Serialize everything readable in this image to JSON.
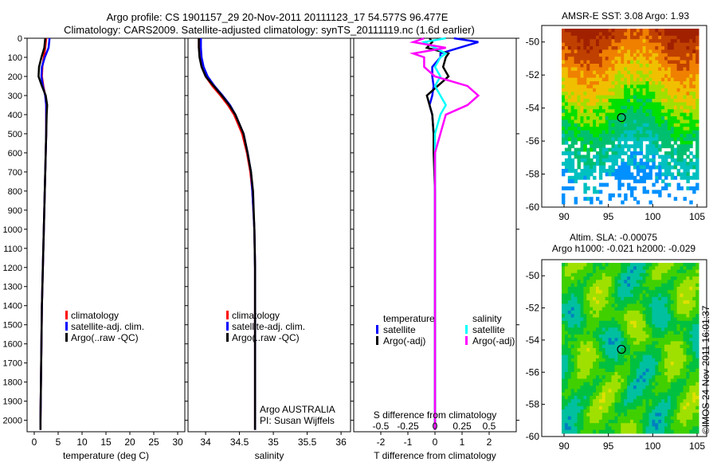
{
  "title_line1": "Argo profile: CS 1901157_29 20-Nov-2011 20111123_17 54.577S 96.477E",
  "title_line2": "Climatology: CARS2009. Satellite-adjusted climatology: synTS_20111119.nc (1.6d earlier)",
  "colors": {
    "climatology": "#ff0000",
    "satellite": "#0000ff",
    "argo": "#000000",
    "sal_satellite": "#00ffff",
    "sal_argo": "#ff00ff"
  },
  "chart_data": [
    {
      "type": "line",
      "xlabel": "temperature (deg C)",
      "xticks": [
        0,
        5,
        10,
        15,
        20,
        25,
        30
      ],
      "xlim": [
        -1.5,
        31.5
      ],
      "ylim": [
        0,
        2060
      ],
      "yticks": [
        0,
        100,
        200,
        300,
        400,
        500,
        600,
        700,
        800,
        900,
        1000,
        1100,
        1200,
        1300,
        1400,
        1500,
        1600,
        1700,
        1800,
        1900,
        2000
      ],
      "legend": [
        "climatology",
        "satellite-adj. clim.",
        "Argo(..raw -QC)"
      ],
      "depth": [
        0,
        50,
        100,
        150,
        200,
        250,
        300,
        350,
        400,
        500,
        600,
        800,
        1000,
        1200,
        1400,
        1600,
        1800,
        2000,
        2050
      ],
      "series": [
        {
          "name": "climatology",
          "values": [
            2.5,
            2.3,
            2.0,
            1.7,
            1.6,
            1.9,
            2.3,
            2.5,
            2.5,
            2.5,
            2.4,
            2.2,
            2.0,
            1.8,
            1.6,
            1.5,
            1.4,
            1.3,
            1.3
          ]
        },
        {
          "name": "satellite-adj. clim.",
          "values": [
            3.2,
            3.0,
            2.2,
            1.6,
            1.5,
            1.8,
            2.3,
            2.5,
            2.5,
            2.5,
            2.4,
            2.2,
            2.0,
            1.8,
            1.6,
            1.5,
            1.4,
            1.3,
            1.3
          ]
        },
        {
          "name": "Argo",
          "values": [
            2.3,
            2.1,
            1.5,
            1.0,
            0.9,
            1.6,
            2.4,
            2.7,
            2.6,
            2.5,
            2.4,
            2.2,
            2.0,
            1.8,
            1.6,
            1.5,
            1.4,
            1.3,
            1.3
          ]
        }
      ]
    },
    {
      "type": "line",
      "xlabel": "salinity",
      "xticks": [
        34,
        34.5,
        35,
        35.5,
        36
      ],
      "xlim": [
        33.74,
        36.14
      ],
      "legend": [
        "climatology",
        "satellite-adj. clim.",
        "Argo(..raw -QC)"
      ],
      "annotation": [
        "Argo AUSTRALIA",
        "PI: Susan Wijffels"
      ],
      "depth": [
        0,
        50,
        100,
        150,
        200,
        250,
        300,
        350,
        400,
        500,
        600,
        700,
        800,
        1000,
        1200,
        1500,
        2000,
        2050
      ],
      "series": [
        {
          "name": "climatology",
          "values": [
            33.9,
            33.9,
            33.92,
            33.95,
            34.0,
            34.1,
            34.22,
            34.33,
            34.42,
            34.54,
            34.61,
            34.66,
            34.69,
            34.72,
            34.73,
            34.73,
            34.73,
            34.73
          ]
        },
        {
          "name": "satellite-adj. clim.",
          "values": [
            33.93,
            33.93,
            33.94,
            33.97,
            34.03,
            34.13,
            34.25,
            34.36,
            34.44,
            34.56,
            34.62,
            34.67,
            34.69,
            34.72,
            34.73,
            34.73,
            34.73,
            34.73
          ]
        },
        {
          "name": "Argo",
          "values": [
            33.9,
            33.9,
            33.91,
            33.94,
            34.0,
            34.12,
            34.24,
            34.35,
            34.44,
            34.56,
            34.62,
            34.67,
            34.7,
            34.72,
            34.73,
            34.73,
            34.73,
            34.73
          ]
        }
      ]
    },
    {
      "type": "line",
      "xlabel": "T difference from climatology",
      "xticks": [
        -2,
        -1,
        0,
        1,
        2
      ],
      "xlim": [
        -3,
        3
      ],
      "top_label": "S difference from climatology",
      "top_ticks": [
        "-0.5",
        "-0.25",
        "0",
        "0.25",
        "0.5"
      ],
      "legend_groups": [
        {
          "title": "temperature",
          "items": [
            "satellite",
            "Argo(-adj)"
          ]
        },
        {
          "title": "salinity",
          "items": [
            "satellite",
            "Argo(-adj)"
          ]
        }
      ],
      "depth": [
        0,
        20,
        50,
        80,
        100,
        150,
        200,
        250,
        300,
        350,
        400,
        500,
        600,
        800,
        1000,
        1500,
        2000,
        2050
      ],
      "series": [
        {
          "name": "temperature satellite",
          "values": [
            0.7,
            1.6,
            0.9,
            0.2,
            0.2,
            -0.1,
            -0.1,
            -0.05,
            -0.1,
            -0.2,
            -0.1,
            -0.05,
            0,
            0,
            0,
            0,
            0,
            0
          ]
        },
        {
          "name": "temperature Argo(-adj)",
          "values": [
            -0.2,
            -0.1,
            -0.3,
            0.5,
            0.4,
            0.3,
            0.5,
            0.1,
            -0.3,
            -0.2,
            -0.1,
            -0.05,
            -0.05,
            0,
            0,
            0,
            0,
            0
          ]
        },
        {
          "name": "salinity satellite",
          "values": [
            0.1,
            -0.1,
            0,
            0.1,
            0.05,
            0,
            0.05,
            0,
            0.05,
            0.1,
            0.05,
            0,
            0,
            0,
            0,
            0,
            0,
            0
          ]
        },
        {
          "name": "salinity Argo(-adj)",
          "values": [
            -0.1,
            -0.2,
            0.1,
            -0.2,
            -0.1,
            -0.1,
            0,
            0.3,
            0.4,
            0.3,
            0.1,
            0.05,
            0,
            0,
            0,
            0,
            0,
            0
          ]
        }
      ]
    }
  ],
  "maps": [
    {
      "title": "AMSR-E SST: 3.08 Argo: 1.93",
      "lat_ticks": [
        "-50",
        "-52",
        "-54",
        "-56",
        "-58",
        "-60"
      ],
      "lon_ticks": [
        "90",
        "95",
        "100",
        "105"
      ]
    },
    {
      "title1": "Altim. SLA: -0.00075",
      "title2": "Argo h1000: -0.021 h2000: -0.029",
      "lat_ticks": [
        "-50",
        "-52",
        "-54",
        "-56",
        "-58",
        "-60"
      ],
      "lon_ticks": [
        "90",
        "95",
        "100",
        "105"
      ]
    }
  ],
  "stamp": "©IMOS 24-Nov-2011 16:01:37"
}
